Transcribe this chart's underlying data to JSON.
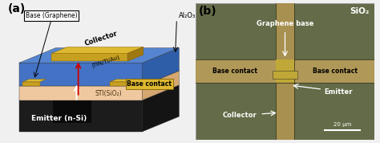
{
  "panel_a_label": "(a)",
  "panel_b_label": "(b)",
  "label_fontsize": 10,
  "panel_a": {
    "labels": {
      "base_graphene": "Base (Graphene)",
      "collector": "Collector",
      "collector_sub": "(TiN/Ti/Au)",
      "al2o3": "Al₂O₃",
      "base_contact": "Base contact",
      "emitter": "Emitter (n-Si)",
      "sti": "STI(SiO₂)"
    },
    "colors": {
      "substrate": "#1c1c1c",
      "substrate_top": "#2d2d2d",
      "substrate_right": "#141414",
      "sti_front": "#f0c8a0",
      "sti_top": "#e8bc90",
      "sti_right": "#d4a870",
      "al2o3_front": "#4472c4",
      "al2o3_top": "#5585d0",
      "al2o3_right": "#2f5ea8",
      "collector_front": "#c8a020",
      "collector_top": "#ddb830",
      "collector_right": "#a07810",
      "base_contact_front": "#c8a020",
      "base_contact_top": "#ddb830",
      "graphene": "#444444"
    }
  },
  "panel_b": {
    "sio2_label": "SiO₂",
    "graphene_base_label": "Graphene base",
    "base_contact_left": "Base contact",
    "base_contact_right": "Base contact",
    "emitter_label": "Emitter",
    "collector_label": "Collector",
    "scalebar_label": "20 μm",
    "colors": {
      "background": "#636b48",
      "stripe": "#b09858",
      "vert": "#a89050",
      "center": "#c0a838",
      "dark_line": "#3a3820"
    }
  }
}
